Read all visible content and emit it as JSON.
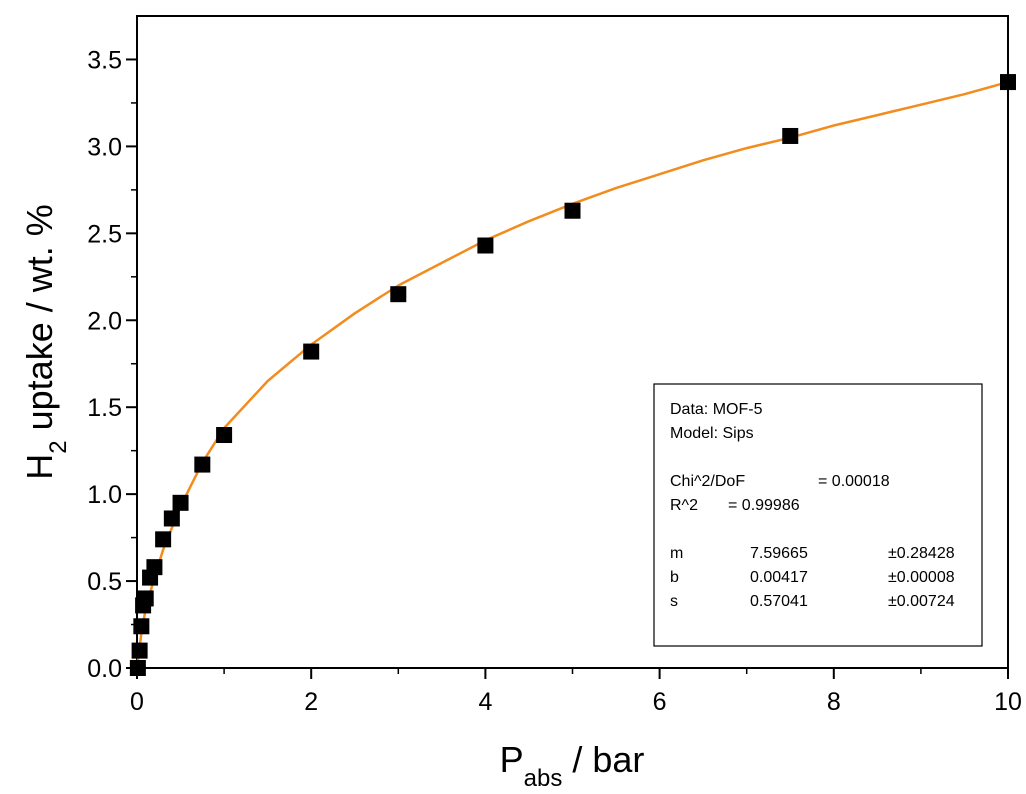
{
  "chart_data": {
    "type": "scatter",
    "xlabel": {
      "main": "P",
      "sub": "abs",
      "rest": " / bar"
    },
    "ylabel": {
      "main": "H",
      "sub": "2",
      "rest": " uptake / wt. %"
    },
    "xlim": [
      0,
      10
    ],
    "ylim": [
      0,
      3.75
    ],
    "x_ticks": [
      "0",
      "2",
      "4",
      "6",
      "8",
      "10"
    ],
    "y_ticks": [
      "0.0",
      "0.5",
      "1.0",
      "1.5",
      "2.0",
      "2.5",
      "3.0",
      "3.5"
    ],
    "grid": false,
    "legend": "none",
    "series": [
      {
        "kind": "marker",
        "marker": "square",
        "color": "#000000",
        "x": [
          0.01,
          0.03,
          0.05,
          0.07,
          0.1,
          0.15,
          0.2,
          0.3,
          0.4,
          0.5,
          0.75,
          1.0,
          2.0,
          3.0,
          4.0,
          5.0,
          7.5,
          10.0
        ],
        "y": [
          0.0,
          0.1,
          0.24,
          0.36,
          0.4,
          0.52,
          0.58,
          0.74,
          0.86,
          0.95,
          1.17,
          1.34,
          1.82,
          2.15,
          2.43,
          2.63,
          3.06,
          3.37
        ]
      },
      {
        "kind": "fit",
        "color": "#F28C1E",
        "x": [
          0,
          0.02,
          0.05,
          0.1,
          0.2,
          0.3,
          0.5,
          0.75,
          1.0,
          1.5,
          2.0,
          2.5,
          3.0,
          3.5,
          4.0,
          4.5,
          5.0,
          5.5,
          6.0,
          6.5,
          7.0,
          7.5,
          8.0,
          8.5,
          9.0,
          9.5,
          10.0
        ],
        "y": [
          0.0,
          0.08,
          0.2,
          0.34,
          0.52,
          0.68,
          0.93,
          1.18,
          1.38,
          1.65,
          1.86,
          2.04,
          2.2,
          2.33,
          2.46,
          2.57,
          2.67,
          2.76,
          2.84,
          2.92,
          2.99,
          3.05,
          3.12,
          3.18,
          3.24,
          3.3,
          3.37
        ]
      }
    ],
    "annotation": {
      "lines": [
        {
          "label": "Data: MOF-5"
        },
        {
          "label": "Model: Sips"
        },
        {
          "label": ""
        },
        {
          "label": "Chi^2/DoF",
          "value": "= 0.00018"
        },
        {
          "label": "R^2",
          "value": "= 0.99986"
        },
        {
          "label": ""
        },
        {
          "label": "m",
          "value": "7.59665",
          "err": "±0.28428"
        },
        {
          "label": "b",
          "value": "0.00417",
          "err": "±0.00008"
        },
        {
          "label": "s",
          "value": "0.57041",
          "err": "±0.00724"
        }
      ]
    }
  }
}
